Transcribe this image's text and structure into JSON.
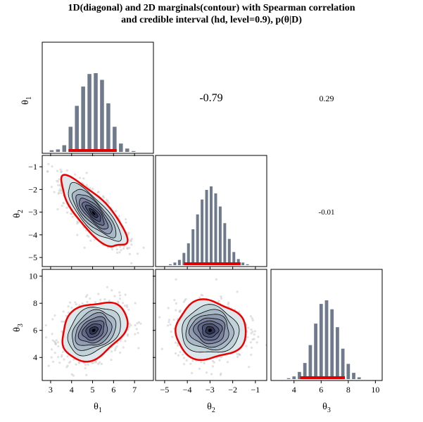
{
  "title_line1": "1D(diagonal) and 2D marginals(contour) with Spearman correlation",
  "title_line2": "and credible interval (hd, level=0.9), p(θ|D)",
  "colors": {
    "hist_fill": "#6f7b8c",
    "ci_line": "#dd0000",
    "outer_contour": "#ee0000",
    "scatter": "#c8c8c8",
    "contour_fills": [
      "#dbe7ea",
      "#c1d1d8",
      "#a9b8c6",
      "#8f9cb1",
      "#79819c",
      "#636b89",
      "#4c5474",
      "#2f3550"
    ]
  },
  "chart_data": {
    "type": "corner",
    "parameters": [
      {
        "name": "θ",
        "sub": "1",
        "range": [
          2.6,
          7.9
        ],
        "ticks": [
          3,
          4,
          5,
          6,
          7
        ]
      },
      {
        "name": "θ",
        "sub": "2",
        "range": [
          -5.4,
          -0.5
        ],
        "ticks": [
          -5,
          -4,
          -3,
          -2,
          -1
        ]
      },
      {
        "name": "θ",
        "sub": "3",
        "range": [
          2.3,
          10.5
        ],
        "ticks": [
          4,
          6,
          8,
          10
        ]
      }
    ],
    "histograms": [
      {
        "param": "θ1",
        "centers": [
          3.05,
          3.35,
          3.65,
          3.95,
          4.25,
          4.55,
          4.85,
          5.15,
          5.45,
          5.75,
          6.05,
          6.35,
          6.65,
          6.95,
          7.25
        ],
        "counts": [
          2,
          3,
          8,
          30,
          55,
          78,
          93,
          94,
          86,
          58,
          30,
          10,
          4,
          1,
          0
        ],
        "ci": [
          3.85,
          6.15
        ]
      },
      {
        "param": "θ2",
        "centers": [
          -4.95,
          -4.75,
          -4.55,
          -4.35,
          -4.15,
          -3.95,
          -3.75,
          -3.55,
          -3.35,
          -3.15,
          -2.95,
          -2.75,
          -2.55,
          -2.35,
          -2.15,
          -1.95,
          -1.75,
          -1.55,
          -1.35,
          -1.15
        ],
        "counts": [
          0,
          1,
          3,
          6,
          14,
          25,
          41,
          58,
          75,
          86,
          90,
          82,
          67,
          48,
          30,
          15,
          7,
          3,
          1,
          0
        ],
        "ci": [
          -4.15,
          -1.65
        ]
      },
      {
        "param": "θ3",
        "centers": [
          3.2,
          3.6,
          4.0,
          4.4,
          4.8,
          5.2,
          5.6,
          6.0,
          6.4,
          6.8,
          7.2,
          7.6,
          8.0,
          8.4,
          8.8,
          9.2
        ],
        "counts": [
          0,
          1,
          3,
          8,
          18,
          38,
          62,
          84,
          88,
          78,
          58,
          34,
          17,
          7,
          2,
          0
        ],
        "ci": [
          4.45,
          7.75
        ]
      }
    ],
    "correlations": [
      {
        "pair": [
          "θ1",
          "θ2"
        ],
        "value": "-0.79"
      },
      {
        "pair": [
          "θ1",
          "θ3"
        ],
        "value": "0.29"
      },
      {
        "pair": [
          "θ2",
          "θ3"
        ],
        "value": "-0.01"
      }
    ],
    "contours_2d": [
      {
        "x": "θ1",
        "y": "θ2",
        "mean": [
          5.05,
          -3.05
        ],
        "sd": [
          0.72,
          0.72
        ],
        "rho": -0.79
      },
      {
        "x": "θ1",
        "y": "θ3",
        "mean": [
          5.05,
          6.0
        ],
        "sd": [
          0.72,
          1.0
        ],
        "rho": 0.29
      },
      {
        "x": "θ2",
        "y": "θ3",
        "mean": [
          -3.0,
          6.0
        ],
        "sd": [
          0.72,
          1.0
        ],
        "rho": -0.01
      }
    ],
    "credible_level": 0.9
  }
}
